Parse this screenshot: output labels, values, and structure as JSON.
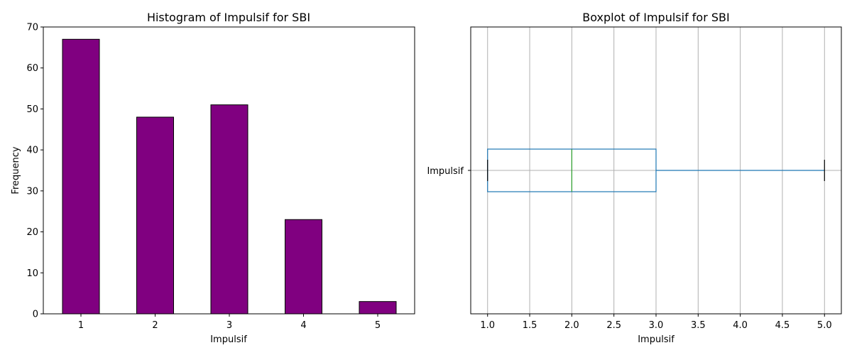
{
  "chart_data": [
    {
      "type": "bar",
      "title": "Histogram of Impulsif for SBI",
      "xlabel": "Impulsif",
      "ylabel": "Frequency",
      "categories": [
        "1",
        "2",
        "3",
        "4",
        "5"
      ],
      "values": [
        67,
        48,
        51,
        23,
        3
      ],
      "ylim": [
        0,
        70
      ],
      "yticks": [
        0,
        10,
        20,
        30,
        40,
        50,
        60,
        70
      ],
      "bar_color": "#800080",
      "edge_color": "#000000",
      "grid": false
    },
    {
      "type": "box",
      "title": "Boxplot of Impulsif for SBI",
      "xlabel": "Impulsif",
      "category": "Impulsif",
      "orientation": "horizontal",
      "whisker_low": 1.0,
      "q1": 1.0,
      "median": 2.0,
      "q3": 3.0,
      "whisker_high": 5.0,
      "xlim": [
        0.8,
        5.2
      ],
      "xticks": [
        "1.0",
        "1.5",
        "2.0",
        "2.5",
        "3.0",
        "3.5",
        "4.0",
        "4.5",
        "5.0"
      ],
      "box_color": "#1f77b4",
      "median_color": "#2ca02c",
      "grid": true
    }
  ]
}
